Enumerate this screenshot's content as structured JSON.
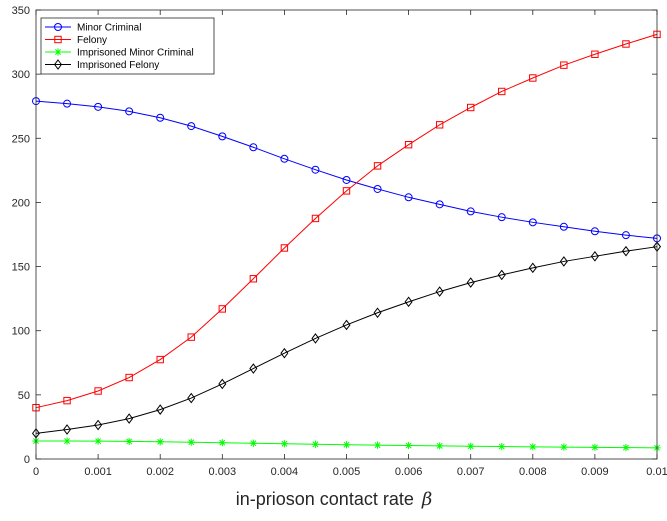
{
  "chart_data": {
    "type": "line",
    "xlabel": "in-prioson contact rate",
    "xlabel_symbol": "β",
    "ylabel": "",
    "xlim": [
      0,
      0.01
    ],
    "ylim": [
      0,
      350
    ],
    "x_ticks": [
      0,
      0.001,
      0.002,
      0.003,
      0.004,
      0.005,
      0.006,
      0.007,
      0.008,
      0.009,
      0.01
    ],
    "x_tick_labels": [
      "0",
      "0.001",
      "0.002",
      "0.003",
      "0.004",
      "0.005",
      "0.006",
      "0.007",
      "0.008",
      "0.009",
      "0.01"
    ],
    "y_ticks": [
      0,
      50,
      100,
      150,
      200,
      250,
      300,
      350
    ],
    "y_tick_labels": [
      "0",
      "50",
      "100",
      "150",
      "200",
      "250",
      "300",
      "350"
    ],
    "grid": false,
    "legend_position": "top-left",
    "x": [
      0,
      0.0005,
      0.001,
      0.0015,
      0.002,
      0.0025,
      0.003,
      0.0035,
      0.004,
      0.0045,
      0.005,
      0.0055,
      0.006,
      0.0065,
      0.007,
      0.0075,
      0.008,
      0.0085,
      0.009,
      0.0095,
      0.01
    ],
    "series": [
      {
        "name": "Minor Criminal",
        "color": "#0000ff",
        "marker": "circle",
        "values": [
          279,
          277,
          274.5,
          271,
          266,
          259.5,
          251.5,
          243,
          234,
          225.5,
          217.5,
          210.5,
          204,
          198.5,
          193,
          188.5,
          184.5,
          181,
          177.5,
          174.5,
          172
        ]
      },
      {
        "name": "Felony",
        "color": "#ff0000",
        "marker": "square",
        "values": [
          40,
          45.5,
          53,
          63.5,
          77.5,
          95,
          117,
          140.5,
          164.5,
          187.5,
          209,
          228.5,
          245,
          260.5,
          274,
          286.5,
          297,
          307,
          315.5,
          323.5,
          331
        ]
      },
      {
        "name": "Imprisoned Minor Criminal",
        "color": "#00ff00",
        "marker": "star",
        "values": [
          14,
          14,
          13.9,
          13.7,
          13.4,
          13.1,
          12.7,
          12.3,
          11.9,
          11.5,
          11.1,
          10.8,
          10.5,
          10.2,
          9.9,
          9.7,
          9.5,
          9.3,
          9.1,
          8.9,
          8.7
        ]
      },
      {
        "name": "Imprisoned Felony",
        "color": "#000000",
        "marker": "diamond",
        "values": [
          20,
          23,
          26.5,
          31.5,
          38.5,
          47.5,
          58.5,
          70.5,
          82.5,
          94,
          104.5,
          114,
          122.5,
          130.5,
          137.5,
          143.5,
          149,
          154,
          158,
          162,
          165.5
        ]
      }
    ]
  }
}
